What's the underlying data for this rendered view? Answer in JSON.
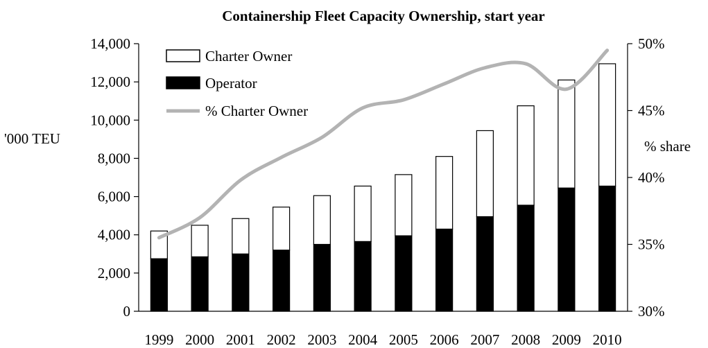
{
  "chart_data": {
    "type": "bar",
    "title": "Containership Fleet Capacity Ownership, start year",
    "ylabel": "'000 TEU",
    "y2label": "% share",
    "categories": [
      "1999",
      "2000",
      "2001",
      "2002",
      "2003",
      "2004",
      "2005",
      "2006",
      "2007",
      "2008",
      "2009",
      "2010"
    ],
    "ylim": [
      0,
      14000
    ],
    "y_ticks": [
      0,
      2000,
      4000,
      6000,
      8000,
      10000,
      12000,
      14000
    ],
    "y_tick_labels": [
      "0",
      "2,000",
      "4,000",
      "6,000",
      "8,000",
      "10,000",
      "12,000",
      "14,000"
    ],
    "y2lim": [
      30,
      50
    ],
    "y2_ticks": [
      30,
      35,
      40,
      45,
      50
    ],
    "y2_tick_labels": [
      "30%",
      "35%",
      "40%",
      "45%",
      "50%"
    ],
    "stacked": true,
    "series": [
      {
        "name": "Operator",
        "type": "bar",
        "color": "#000000",
        "values": [
          2750,
          2850,
          3000,
          3200,
          3500,
          3650,
          3950,
          4300,
          4950,
          5550,
          6450,
          6550
        ]
      },
      {
        "name": "Charter Owner",
        "type": "bar",
        "color": "#ffffff",
        "values": [
          1450,
          1650,
          1850,
          2250,
          2550,
          2900,
          3200,
          3800,
          4500,
          5200,
          5650,
          6400
        ]
      },
      {
        "name": "% Charter Owner",
        "type": "line",
        "axis": "secondary",
        "color": "#b3b3b3",
        "values": [
          35.5,
          37.0,
          39.8,
          41.5,
          43.0,
          45.2,
          45.8,
          47.0,
          48.2,
          48.5,
          46.6,
          49.5
        ]
      }
    ],
    "legend": {
      "placement": "top-left",
      "entries": [
        "Charter Owner",
        "Operator",
        "% Charter Owner"
      ]
    },
    "grid": false
  }
}
